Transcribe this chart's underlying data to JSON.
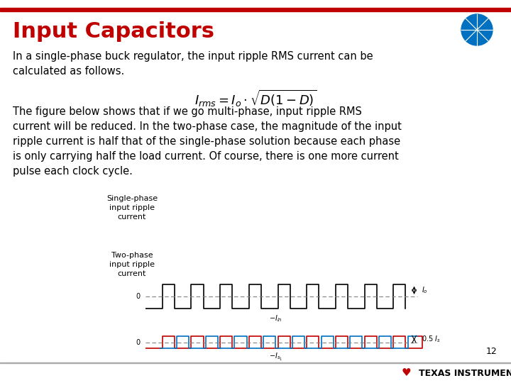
{
  "title": "Input Capacitors",
  "title_color": "#C00000",
  "title_fontsize": 22,
  "bg_color": "#FFFFFF",
  "body_text_1": "In a single-phase buck regulator, the input ripple RMS current can be\ncalculated as follows.",
  "body_text_2": "The figure below shows that if we go multi-phase, input ripple RMS\ncurrent will be reduced. In the two-phase case, the magnitude of the input\nripple current is half that of the single-phase solution because each phase\nis only carrying half the load current. Of course, there is one more current\npulse each clock cycle.",
  "label_single": "Single-phase\ninput ripple\ncurrent",
  "label_two": "Two-phase\ninput ripple\ncurrent",
  "page_number": "12",
  "header_line_color": "#C00000",
  "text_color": "#000000",
  "single_wave_color": "#000000",
  "two_wave_color_red": "#C00000",
  "two_wave_color_blue": "#0070C0",
  "formula_color": "#000000",
  "ti_text": "TEXAS INSTRUMENTS",
  "ti_text_color": "#000000",
  "bottom_line_color": "#AAAAAA",
  "globe_color": "#0070C0"
}
